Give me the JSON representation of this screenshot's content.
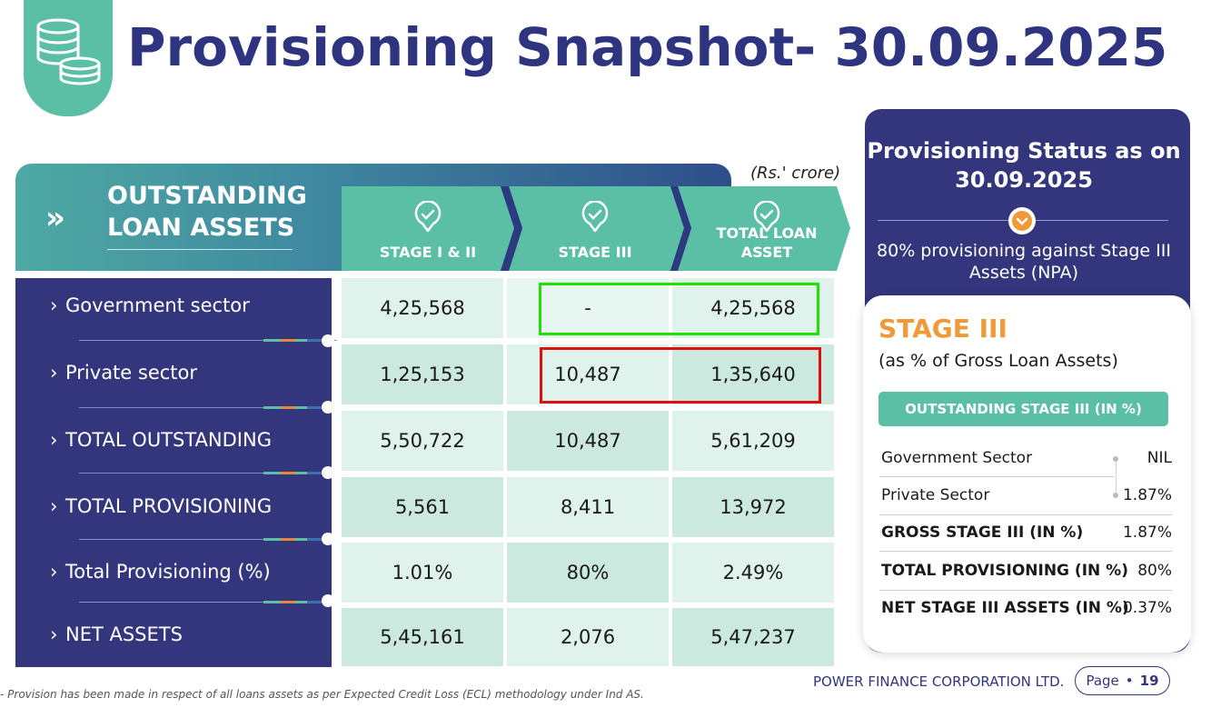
{
  "page": {
    "title": "Provisioning Snapshot- 30.09.2025",
    "unit_note": "(Rs.' crore)",
    "logo_icon": "coin-stack-icon"
  },
  "table": {
    "section_title_line1": "OUTSTANDING",
    "section_title_line2": "LOAN ASSETS",
    "columns": [
      {
        "line1": "STAGE I & II",
        "line2": ""
      },
      {
        "line1": "STAGE III",
        "line2": ""
      },
      {
        "line1": "TOTAL LOAN",
        "line2": "ASSET"
      }
    ],
    "rows": [
      {
        "label": "Government sector",
        "values": [
          "4,25,568",
          "-",
          "4,25,568"
        ]
      },
      {
        "label": "Private sector",
        "values": [
          "1,25,153",
          "10,487",
          "1,35,640"
        ]
      },
      {
        "label": "TOTAL OUTSTANDING",
        "values": [
          "5,50,722",
          "10,487",
          "5,61,209"
        ]
      },
      {
        "label": "TOTAL PROVISIONING",
        "values": [
          "5,561",
          "8,411",
          "13,972"
        ]
      },
      {
        "label": "Total Provisioning (%)",
        "values": [
          "1.01%",
          "80%",
          "2.49%"
        ]
      },
      {
        "label": "NET ASSETS",
        "values": [
          "5,45,161",
          "2,076",
          "5,47,237"
        ]
      }
    ]
  },
  "side": {
    "title_line1": "Provisioning Status as on",
    "title_line2": "30.09.2025",
    "subtitle": "80% provisioning against Stage III Assets (NPA)",
    "stage_title": "STAGE III",
    "stage_sub": "(as % of Gross Loan Assets)",
    "pill_label": "OUTSTANDING STAGE III (IN %)",
    "rows": [
      {
        "label": "Government Sector",
        "value": "NIL",
        "bold": false
      },
      {
        "label": "Private Sector",
        "value": "1.87%",
        "bold": false
      },
      {
        "label": "GROSS STAGE III (IN %)",
        "value": "1.87%",
        "bold": true
      },
      {
        "label": "TOTAL PROVISIONING (IN %)",
        "value": "80%",
        "bold": true
      },
      {
        "label": "NET  STAGE III ASSETS (IN %)",
        "value": "0.37%",
        "bold": true
      }
    ]
  },
  "footer": {
    "note": "- Provision has been made in respect of all loans assets as per Expected Credit Loss (ECL) methodology under Ind AS.",
    "company": "POWER FINANCE CORPORATION LTD.",
    "page_label": "Page",
    "page_number": "19"
  },
  "colors": {
    "navy": "#33357d",
    "teal": "#5bbfa6",
    "orange": "#f09a37",
    "highlight_green": "#22e000",
    "highlight_red": "#e01010"
  }
}
